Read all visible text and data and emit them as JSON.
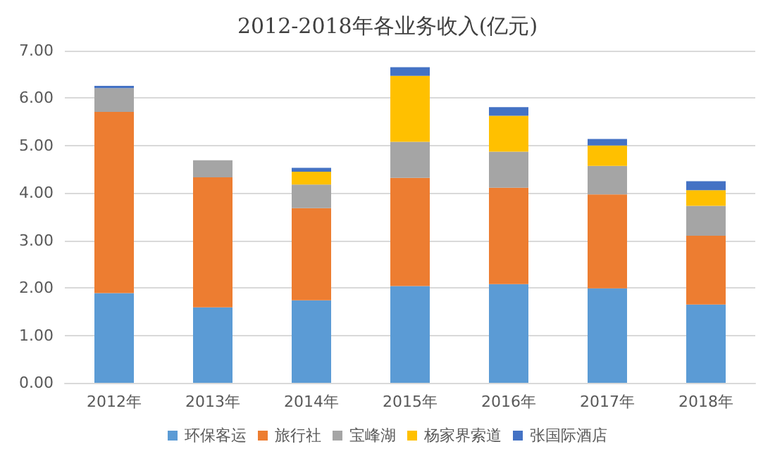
{
  "chart_data": {
    "type": "bar",
    "title": "2012-2018年各业务收入(亿元)",
    "stacked": true,
    "categories": [
      "2012年",
      "2013年",
      "2014年",
      "2015年",
      "2016年",
      "2017年",
      "2018年"
    ],
    "series": [
      {
        "name": "环保客运",
        "color": "#5b9bd5",
        "values": [
          1.89,
          1.59,
          1.74,
          2.04,
          2.08,
          1.99,
          1.65
        ]
      },
      {
        "name": "旅行社",
        "color": "#ed7d31",
        "values": [
          3.82,
          2.74,
          1.94,
          2.28,
          2.03,
          1.98,
          1.45
        ]
      },
      {
        "name": "宝峰湖",
        "color": "#a5a5a5",
        "values": [
          0.5,
          0.36,
          0.5,
          0.76,
          0.76,
          0.6,
          0.63
        ]
      },
      {
        "name": "杨家界索道",
        "color": "#ffc000",
        "values": [
          0,
          0,
          0.27,
          1.39,
          0.76,
          0.43,
          0.33
        ]
      },
      {
        "name": "张国际酒店",
        "color": "#4472c4",
        "values": [
          0.05,
          0,
          0.08,
          0.18,
          0.18,
          0.14,
          0.19
        ]
      }
    ],
    "ylim": [
      0,
      7
    ],
    "yticks": [
      {
        "value": 0,
        "label": "0.00"
      },
      {
        "value": 1,
        "label": "1.00"
      },
      {
        "value": 2,
        "label": "2.00"
      },
      {
        "value": 3,
        "label": "3.00"
      },
      {
        "value": 4,
        "label": "4.00"
      },
      {
        "value": 5,
        "label": "5.00"
      },
      {
        "value": 6,
        "label": "6.00"
      },
      {
        "value": 7,
        "label": "7.00"
      }
    ],
    "grid": "y",
    "legend": "bottom"
  }
}
